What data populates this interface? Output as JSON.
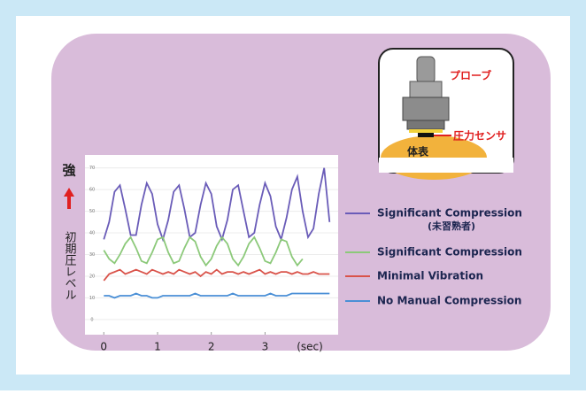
{
  "chart_data": {
    "type": "line",
    "y_label_top": "強",
    "y_label": "初期圧レベル",
    "x_unit_label": "(sec)",
    "x": [
      0,
      0.1,
      0.2,
      0.3,
      0.4,
      0.5,
      0.6,
      0.7,
      0.8,
      0.9,
      1.0,
      1.1,
      1.2,
      1.3,
      1.4,
      1.5,
      1.6,
      1.7,
      1.8,
      1.9,
      2.0,
      2.1,
      2.2,
      2.3,
      2.4,
      2.5,
      2.6,
      2.7,
      2.8,
      2.9,
      3.0,
      3.1,
      3.2,
      3.3,
      3.4,
      3.5,
      3.6,
      3.7,
      3.8,
      3.9,
      4.0,
      4.1,
      4.2
    ],
    "series": [
      {
        "name": "Significant Compression",
        "legend_note": "(未習熟者)",
        "color": "#6a5cb8",
        "values": [
          37,
          45,
          59,
          62,
          51,
          39,
          39,
          53,
          63,
          58,
          44,
          37,
          46,
          59,
          62,
          51,
          38,
          40,
          53,
          63,
          58,
          43,
          37,
          46,
          60,
          62,
          50,
          38,
          40,
          53,
          63,
          57,
          43,
          37,
          47,
          60,
          66,
          50,
          38,
          42,
          58,
          70,
          45
        ]
      },
      {
        "name": "Significant Compression",
        "color": "#8cc97a",
        "values": [
          32,
          28,
          26,
          30,
          35,
          38,
          33,
          27,
          26,
          31,
          37,
          38,
          31,
          26,
          27,
          33,
          38,
          36,
          29,
          25,
          28,
          34,
          38,
          35,
          28,
          25,
          29,
          35,
          38,
          33,
          27,
          26,
          31,
          37,
          36,
          29,
          25,
          28,
          null,
          null,
          null,
          null,
          null
        ]
      },
      {
        "name": "Minimal Vibration",
        "color": "#d9534a",
        "values": [
          18,
          21,
          22,
          23,
          21,
          22,
          23,
          22,
          21,
          23,
          22,
          21,
          22,
          21,
          23,
          22,
          21,
          22,
          20,
          22,
          21,
          23,
          21,
          22,
          22,
          21,
          22,
          21,
          22,
          23,
          21,
          22,
          21,
          22,
          22,
          21,
          22,
          21,
          21,
          22,
          21,
          21,
          21
        ]
      },
      {
        "name": "No Manual Compression",
        "color": "#4a8fd6",
        "values": [
          11,
          11,
          10,
          11,
          11,
          11,
          12,
          11,
          11,
          10,
          10,
          11,
          11,
          11,
          11,
          11,
          11,
          12,
          11,
          11,
          11,
          11,
          11,
          11,
          12,
          11,
          11,
          11,
          11,
          11,
          11,
          12,
          11,
          11,
          11,
          12,
          12,
          12,
          12,
          12,
          12,
          12,
          12
        ]
      }
    ],
    "xlim": [
      -0.35,
      4.36
    ],
    "xticks": [
      0,
      1,
      2,
      3
    ],
    "ylim": [
      -7,
      76
    ],
    "yticks": [
      0,
      10,
      20,
      30,
      40,
      50,
      60,
      70
    ],
    "grid": true
  },
  "diagram": {
    "probe": "プローブ",
    "sensor": "圧力センサ",
    "surface": "体表"
  }
}
